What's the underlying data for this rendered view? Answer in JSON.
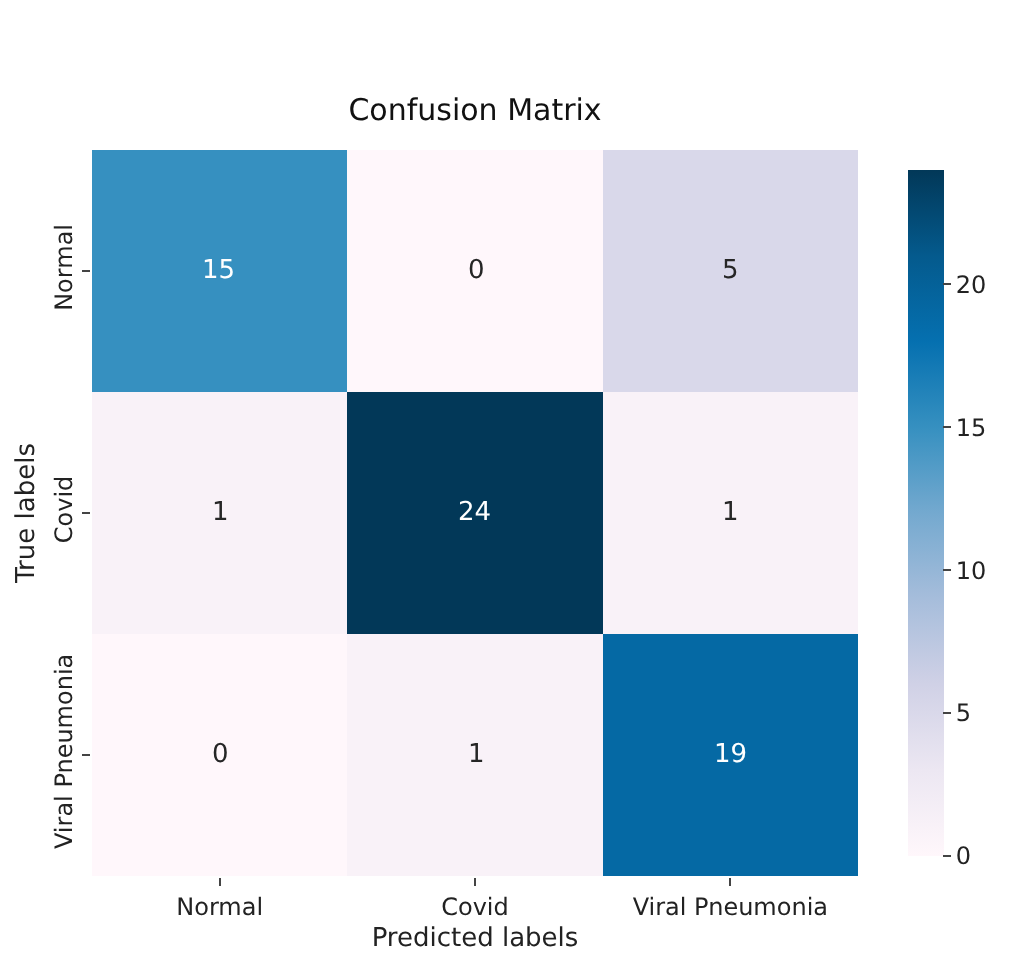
{
  "chart_data": {
    "type": "heatmap",
    "title": "Confusion Matrix",
    "xlabel": "Predicted labels",
    "ylabel": "True labels",
    "categories": [
      "Normal",
      "Covid",
      "Viral Pneumonia"
    ],
    "y_categories": [
      "Normal",
      "Covid",
      "Viral Pneumonia"
    ],
    "cells": [
      [
        15,
        0,
        5
      ],
      [
        1,
        24,
        1
      ],
      [
        0,
        1,
        19
      ]
    ],
    "clim": [
      0,
      24
    ],
    "cticks": [
      0,
      5,
      10,
      15,
      20
    ],
    "data_labels": true
  }
}
